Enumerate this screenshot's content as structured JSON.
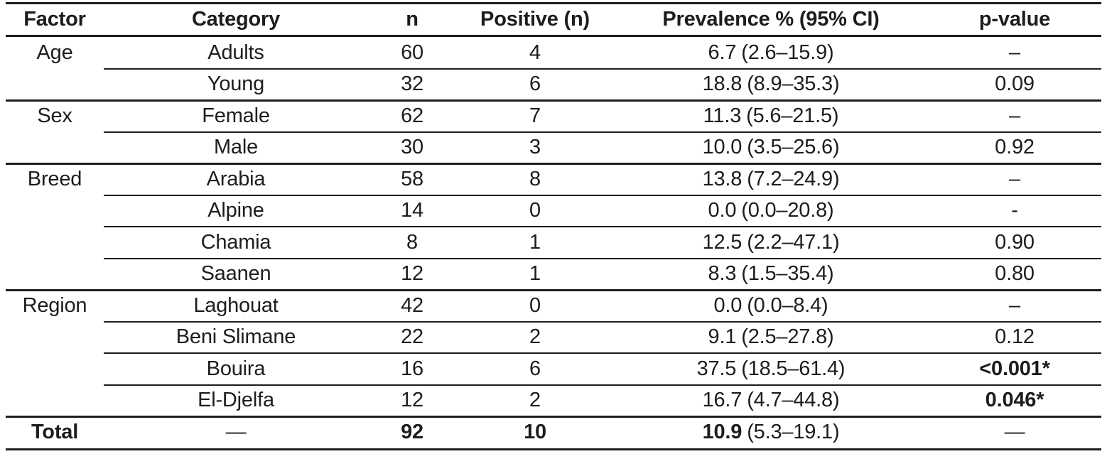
{
  "table": {
    "columns": [
      "Factor",
      "Category",
      "n",
      "Positive (n)",
      "Prevalence % (95% CI)",
      "p-value"
    ],
    "groups": [
      {
        "factor": "Age",
        "rows": [
          {
            "category": "Adults",
            "n": "60",
            "positive": "4",
            "prev": "6.7",
            "ci": "(2.6–15.9)",
            "p": "–",
            "p_bold": false
          },
          {
            "category": "Young",
            "n": "32",
            "positive": "6",
            "prev": "18.8",
            "ci": "(8.9–35.3)",
            "p": "0.09",
            "p_bold": false
          }
        ]
      },
      {
        "factor": "Sex",
        "rows": [
          {
            "category": "Female",
            "n": "62",
            "positive": "7",
            "prev": "11.3",
            "ci": "(5.6–21.5)",
            "p": "–",
            "p_bold": false
          },
          {
            "category": "Male",
            "n": "30",
            "positive": "3",
            "prev": "10.0",
            "ci": "(3.5–25.6)",
            "p": "0.92",
            "p_bold": false
          }
        ]
      },
      {
        "factor": "Breed",
        "rows": [
          {
            "category": "Arabia",
            "n": "58",
            "positive": "8",
            "prev": "13.8",
            "ci": "(7.2–24.9)",
            "p": "–",
            "p_bold": false
          },
          {
            "category": "Alpine",
            "n": "14",
            "positive": "0",
            "prev": "0.0",
            "ci": "(0.0–20.8)",
            "p": "-",
            "p_bold": false
          },
          {
            "category": "Chamia",
            "n": "8",
            "positive": "1",
            "prev": "12.5",
            "ci": "(2.2–47.1)",
            "p": "0.90",
            "p_bold": false
          },
          {
            "category": "Saanen",
            "n": "12",
            "positive": "1",
            "prev": "8.3",
            "ci": "(1.5–35.4)",
            "p": "0.80",
            "p_bold": false
          }
        ]
      },
      {
        "factor": "Region",
        "rows": [
          {
            "category": "Laghouat",
            "n": "42",
            "positive": "0",
            "prev": "0.0",
            "ci": "(0.0–8.4)",
            "p": "–",
            "p_bold": false
          },
          {
            "category": "Beni Slimane",
            "n": "22",
            "positive": "2",
            "prev": "9.1",
            "ci": "(2.5–27.8)",
            "p": "0.12",
            "p_bold": false
          },
          {
            "category": "Bouira",
            "n": "16",
            "positive": "6",
            "prev": "37.5",
            "ci": "(18.5–61.4)",
            "p": "<0.001*",
            "p_bold": true
          },
          {
            "category": "El-Djelfa",
            "n": "12",
            "positive": "2",
            "prev": "16.7",
            "ci": "(4.7–44.8)",
            "p": "0.046*",
            "p_bold": true
          }
        ]
      }
    ],
    "total": {
      "factor": "Total",
      "category": "—",
      "n": "92",
      "positive": "10",
      "prev": "10.9",
      "ci": "(5.3–19.1)",
      "p": "—"
    }
  },
  "colors": {
    "text": "#1d1d1d",
    "rule": "#1d1d1d",
    "background": "#ffffff"
  }
}
